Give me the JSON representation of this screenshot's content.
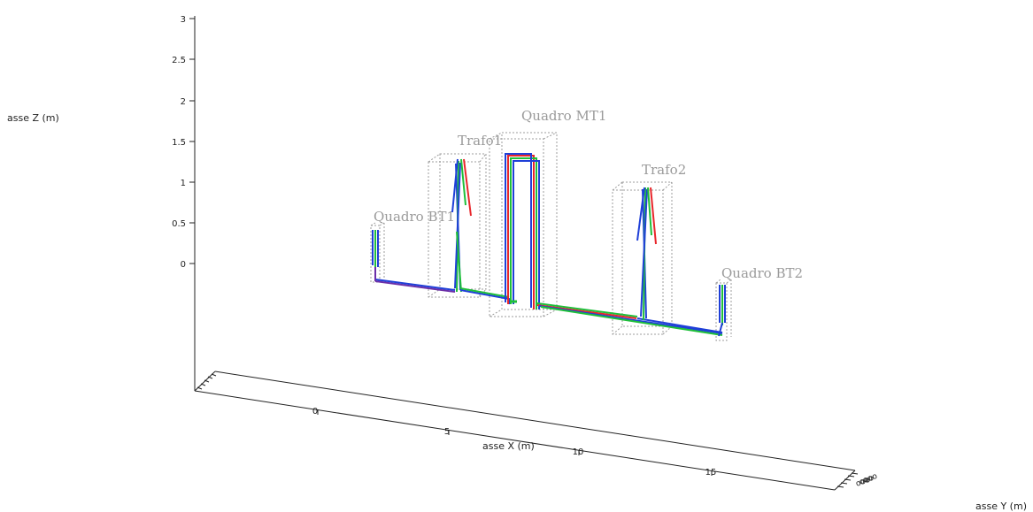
{
  "axes": {
    "z_label": "asse Z (m)",
    "x_label": "asse X (m)",
    "y_label": "asse Y (m)",
    "z_ticks": [
      "3",
      "2.5",
      "2",
      "1.5",
      "1",
      "0.5",
      "0"
    ],
    "x_ticks": [
      "0",
      "5",
      "10",
      "15"
    ],
    "y_ticks_unreadable": true
  },
  "equipment": [
    {
      "id": "quadro-bt1",
      "label": "Quadro BT1"
    },
    {
      "id": "trafo1",
      "label": "Trafo1"
    },
    {
      "id": "quadro-mt1",
      "label": "Quadro MT1"
    },
    {
      "id": "trafo2",
      "label": "Trafo2"
    },
    {
      "id": "quadro-bt2",
      "label": "Quadro BT2"
    }
  ],
  "colors": {
    "phase_red": "#e8262b",
    "phase_green": "#1fbf3a",
    "phase_blue": "#1f3fd8",
    "neutral_purple": "#6b2fa8",
    "box_outline": "#9c9c9c",
    "axis": "#222222"
  }
}
